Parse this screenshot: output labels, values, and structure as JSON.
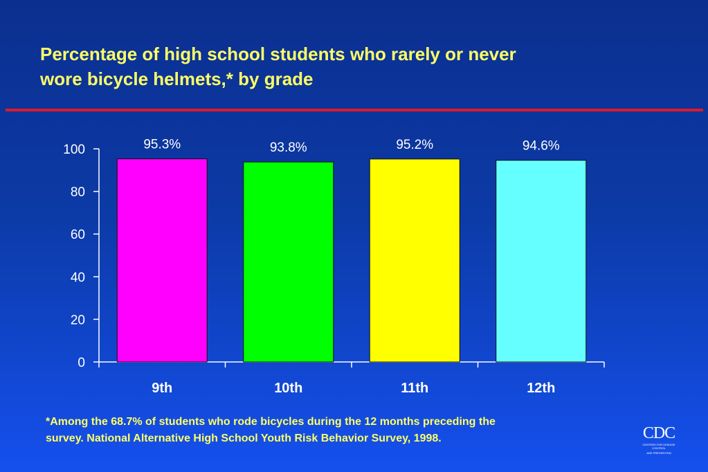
{
  "slide": {
    "title_lines": [
      "Percentage of high school students who rarely or never",
      "wore bicycle helmets,* by grade"
    ],
    "footnote_lines": [
      "*Among the 68.7% of students who rode bicycles during the 12 months preceding the",
      "survey. National Alternative High School Youth Risk Behavior Survey, 1998."
    ],
    "logo": {
      "mark": "CDC",
      "sub_lines": [
        "CENTERS FOR DISEASE CONTROL",
        "AND PREVENTION"
      ]
    },
    "colors": {
      "title": "#ffff66",
      "rule": "#e0182a",
      "axis": "#ffffff"
    }
  },
  "chart_data": {
    "type": "bar",
    "categories": [
      "9th",
      "10th",
      "11th",
      "12th"
    ],
    "values": [
      95.3,
      93.8,
      95.2,
      94.6
    ],
    "data_labels": [
      "95.3%",
      "93.8%",
      "95.2%",
      "94.6%"
    ],
    "bar_colors": [
      "#ff00ff",
      "#00ff00",
      "#ffff00",
      "#66ffff"
    ],
    "ylim": [
      0,
      100
    ],
    "yticks": [
      0,
      20,
      40,
      60,
      80,
      100
    ],
    "xlabel": "",
    "ylabel": "",
    "grid": false,
    "legend": "none"
  }
}
